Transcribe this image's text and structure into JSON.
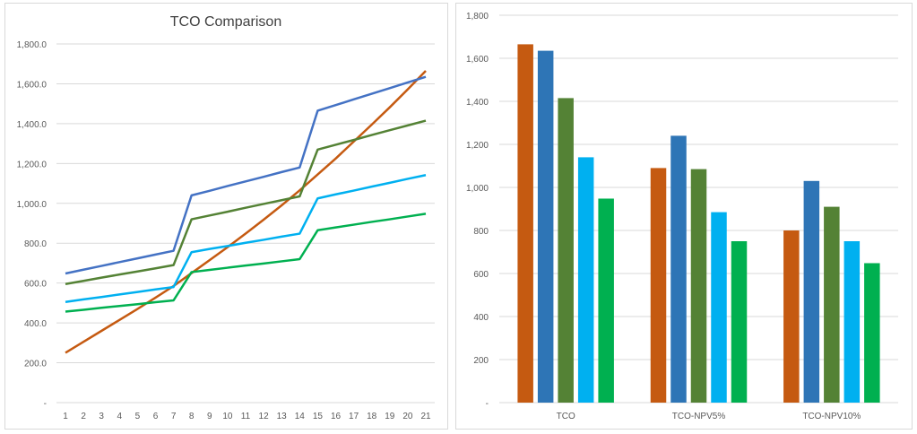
{
  "chart_data": [
    {
      "type": "line",
      "title": "TCO Comparison",
      "xlabel": "",
      "ylabel": "",
      "ylim": [
        0,
        1800
      ],
      "y_ticks": [
        "-",
        "200.0",
        "400.0",
        "600.0",
        "800.0",
        "1,000.0",
        "1,200.0",
        "1,400.0",
        "1,600.0",
        "1,800.0"
      ],
      "x": [
        1,
        2,
        3,
        4,
        5,
        6,
        7,
        8,
        9,
        10,
        11,
        12,
        13,
        14,
        15,
        16,
        17,
        18,
        19,
        20,
        21
      ],
      "grid": true,
      "series": [
        {
          "color": "#C55A11",
          "values": [
            250,
            305,
            360,
            415,
            470,
            527,
            585,
            650,
            715,
            780,
            848,
            918,
            990,
            1065,
            1145,
            1225,
            1310,
            1395,
            1482,
            1572,
            1665
          ]
        },
        {
          "color": "#4472C4",
          "values": [
            648,
            667,
            686,
            705,
            724,
            743,
            762,
            1040,
            1063,
            1087,
            1110,
            1133,
            1157,
            1180,
            1465,
            1493,
            1522,
            1550,
            1578,
            1607,
            1635
          ]
        },
        {
          "color": "#548235",
          "values": [
            595,
            611,
            627,
            643,
            658,
            674,
            690,
            920,
            939,
            958,
            978,
            997,
            1016,
            1035,
            1270,
            1294,
            1318,
            1343,
            1367,
            1391,
            1415
          ]
        },
        {
          "color": "#00B0F0",
          "values": [
            505,
            518,
            530,
            543,
            555,
            568,
            580,
            755,
            771,
            786,
            802,
            817,
            833,
            848,
            1025,
            1045,
            1064,
            1084,
            1103,
            1123,
            1142
          ]
        },
        {
          "color": "#00B050",
          "values": [
            457,
            466,
            476,
            485,
            494,
            504,
            513,
            655,
            666,
            677,
            688,
            698,
            709,
            720,
            865,
            879,
            893,
            907,
            920,
            934,
            948
          ]
        }
      ]
    },
    {
      "type": "bar",
      "title": "",
      "ylim": [
        0,
        1800
      ],
      "y_ticks": [
        "-",
        "200",
        "400",
        "600",
        "800",
        "1,000",
        "1,200",
        "1,400",
        "1,600",
        "1,800"
      ],
      "categories": [
        "TCO",
        "TCO-NPV5%",
        "TCO-NPV10%"
      ],
      "grid": true,
      "series": [
        {
          "color": "#C55A11",
          "values": [
            1665,
            1090,
            800
          ]
        },
        {
          "color": "#2E75B6",
          "values": [
            1635,
            1240,
            1030
          ]
        },
        {
          "color": "#548235",
          "values": [
            1415,
            1085,
            910
          ]
        },
        {
          "color": "#00B0F0",
          "values": [
            1140,
            885,
            750
          ]
        },
        {
          "color": "#00B050",
          "values": [
            948,
            750,
            648
          ]
        }
      ]
    }
  ]
}
